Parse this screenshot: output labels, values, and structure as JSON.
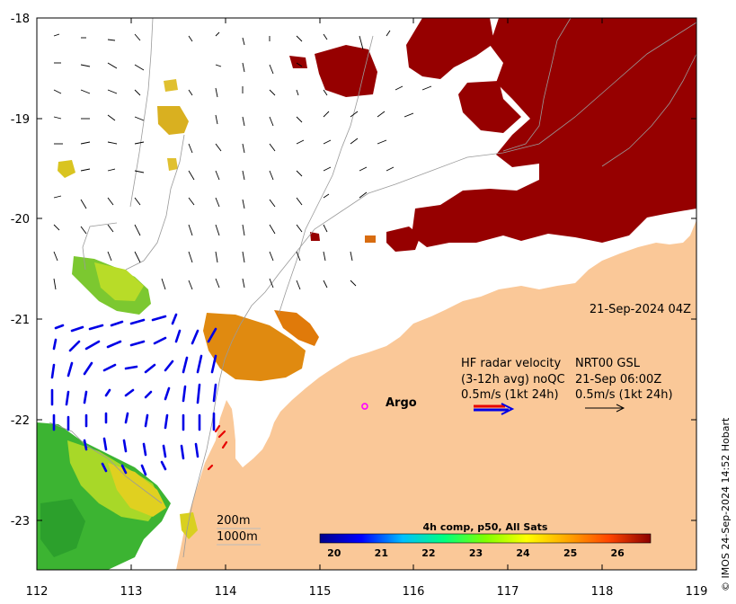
{
  "chart_data": {
    "type": "map",
    "title": "",
    "xlabel": "",
    "ylabel": "",
    "xlim": [
      112,
      119
    ],
    "ylim": [
      -23.5,
      -18
    ],
    "x_ticks": [
      "112",
      "113",
      "114",
      "115",
      "116",
      "117",
      "118",
      "119"
    ],
    "y_ticks": [
      "-18",
      "-19",
      "-20",
      "-21",
      "-22",
      "-23"
    ],
    "timestamp": "21-Sep-2024 04Z",
    "argo_label": "Argo",
    "argo_location": {
      "lon": 115.48,
      "lat": -21.87
    },
    "hf_radar_legend": {
      "line1_left": "HF radar velocity",
      "line1_right": "NRT00 GSL",
      "line2_left": "(3-12h avg) noQC",
      "line2_right": "21-Sep 06:00Z",
      "line3_left": "0.5m/s (1kt 24h)",
      "line3_right": "0.5m/s (1kt 24h)"
    },
    "contours": [
      "200m",
      "1000m"
    ],
    "colorbar": {
      "title": "4h comp, p50, All Sats",
      "ticks": [
        "20",
        "21",
        "22",
        "23",
        "24",
        "25",
        "26"
      ],
      "range": [
        19.7,
        26.7
      ],
      "colors": [
        "#00008b",
        "#0000ff",
        "#00bfff",
        "#00ff7f",
        "#7fff00",
        "#ffff00",
        "#ffa500",
        "#ff4500",
        "#8b0000"
      ]
    }
  },
  "credit": "© IMOS 24-Sep-2024 14:52 Hobart",
  "colors": {
    "land": "#fac898",
    "sst_hot": "#960000",
    "radar_blue": "#0000e6",
    "radar_red": "#e60000",
    "argo": "#ff00ff"
  }
}
